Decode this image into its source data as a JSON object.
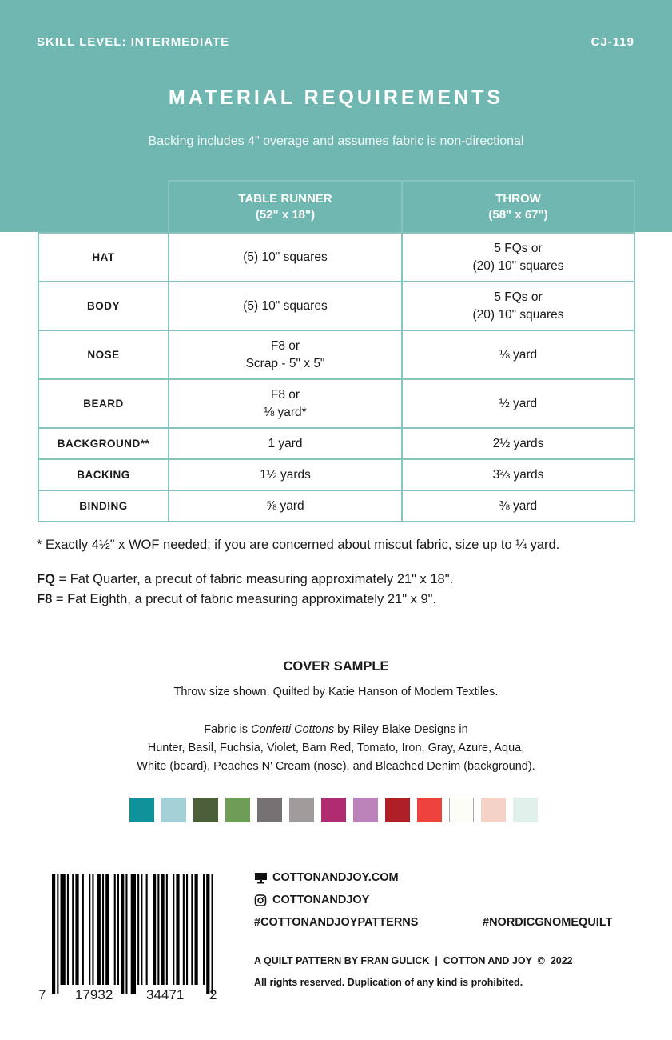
{
  "header": {
    "skill_level": "SKILL LEVEL: INTERMEDIATE",
    "pattern_code": "CJ-119",
    "title": "MATERIAL REQUIREMENTS",
    "subtitle": "Backing includes 4\" overage and assumes fabric is non-directional",
    "accent_color": "#6fb7b0"
  },
  "table": {
    "columns": [
      {
        "name": "TABLE RUNNER",
        "size": "(52\" x 18\")"
      },
      {
        "name": "THROW",
        "size": "(58\" x 67\")"
      }
    ],
    "rows": [
      {
        "label": "HAT",
        "runner": [
          "(5) 10\" squares"
        ],
        "throw": [
          "5 FQs or",
          "(20) 10\" squares"
        ]
      },
      {
        "label": "BODY",
        "runner": [
          "(5) 10\" squares"
        ],
        "throw": [
          "5 FQs or",
          "(20) 10\" squares"
        ]
      },
      {
        "label": "NOSE",
        "runner": [
          "F8  or",
          "Scrap - 5\" x 5\""
        ],
        "throw": [
          "⅛ yard"
        ]
      },
      {
        "label": "BEARD",
        "runner": [
          "F8  or",
          "⅛ yard*"
        ],
        "throw": [
          "½ yard"
        ]
      },
      {
        "label": "BACKGROUND**",
        "runner": [
          "1 yard"
        ],
        "throw": [
          "2½ yards"
        ]
      },
      {
        "label": "BACKING",
        "runner": [
          "1½ yards"
        ],
        "throw": [
          "3⅔ yards"
        ]
      },
      {
        "label": "BINDING",
        "runner": [
          "⅝ yard"
        ],
        "throw": [
          "⅜ yard"
        ]
      }
    ]
  },
  "notes": {
    "footnote": "* Exactly 4½\" x WOF needed; if you are concerned about miscut fabric, size up to ¼ yard.",
    "fq_term": "FQ",
    "fq_def": " = Fat Quarter, a precut of fabric measuring approximately 21\" x 18\".",
    "f8_term": "F8",
    "f8_def": " = Fat Eighth, a precut of fabric measuring approximately 21\" x 9\"."
  },
  "cover": {
    "heading": "COVER SAMPLE",
    "line1": "Throw size shown. Quilted by Katie Hanson of Modern Textiles.",
    "line2_pre": "Fabric is ",
    "line2_em": "Confetti Cottons",
    "line2_post": " by Riley Blake Designs in",
    "line3": "Hunter, Basil, Fuchsia, Violet, Barn Red, Tomato, Iron, Gray, Azure, Aqua,",
    "line4": "White (beard), Peaches N' Cream (nose), and Bleached Denim (background).",
    "swatches": [
      "#0f929a",
      "#a2d0d6",
      "#4a5f3a",
      "#6e9d57",
      "#767273",
      "#a09c9c",
      "#b12b70",
      "#bc82ba",
      "#ae1f27",
      "#ee433c",
      "#fdfdf8",
      "#f5d2c8",
      "#e0f0ea"
    ]
  },
  "barcode": {
    "digits": [
      "7",
      "17932",
      "34471",
      "2"
    ]
  },
  "footer": {
    "website": "COTTONANDJOY.COM",
    "website_icon": "monitor-icon",
    "instagram": "COTTONANDJOY",
    "instagram_icon": "instagram-icon",
    "hashtag1": "#COTTONANDJOYPATTERNS",
    "hashtag2": "#NORDICGNOMEQUILT",
    "credit": "A QUILT PATTERN BY FRAN GULICK  |  COTTON AND JOY  ©  2022",
    "rights": "All rights reserved. Duplication of any kind is prohibited."
  }
}
